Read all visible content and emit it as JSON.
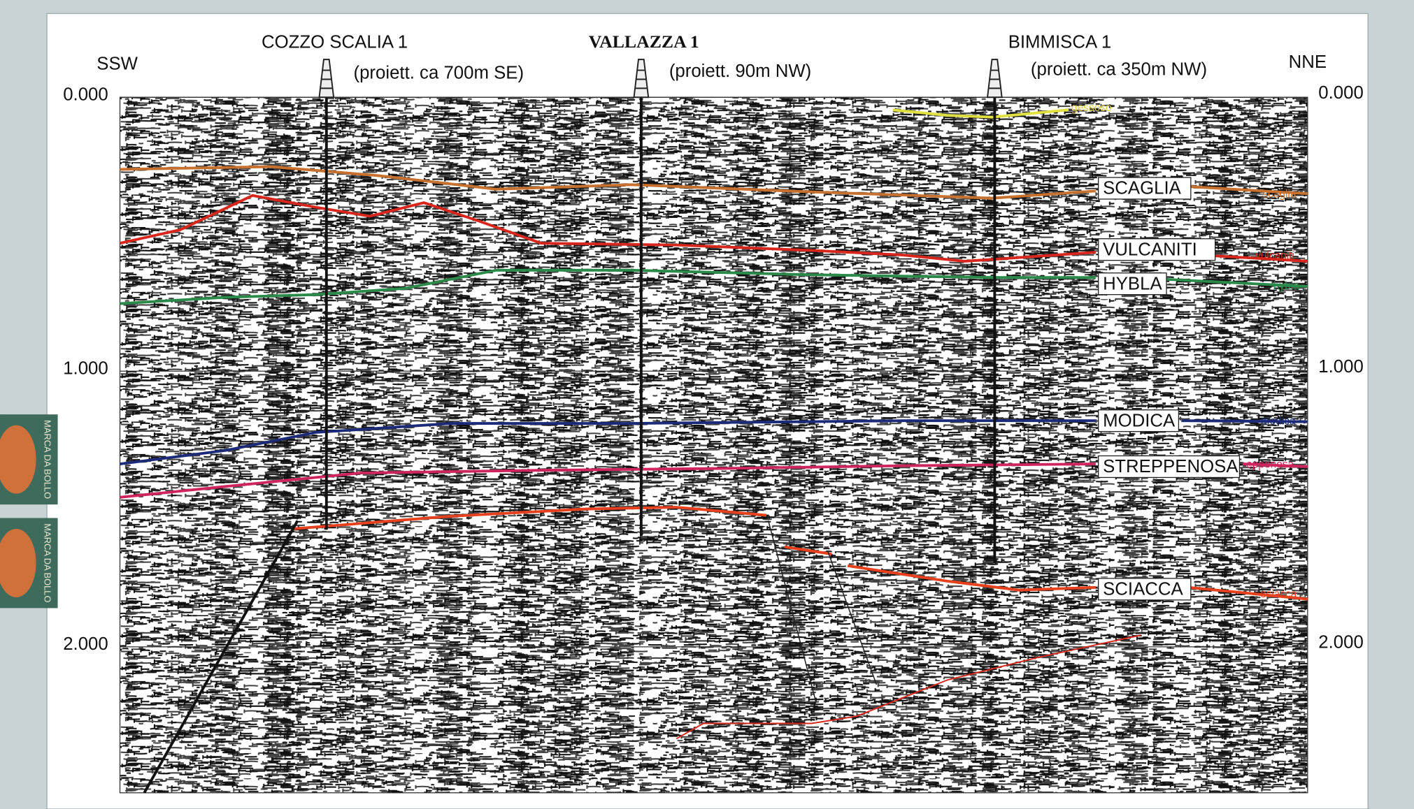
{
  "header": {
    "left_direction": "SSW",
    "right_direction": "NNE"
  },
  "wells": [
    {
      "name": "COZZO SCALIA 1",
      "note": "(proiett. ca 700m SE)"
    },
    {
      "name": "VALLAZZA 1",
      "note": "(proiett.  90m NW)"
    },
    {
      "name": "BIMMISCA 1",
      "note": "(proiett. ca 350m NW)"
    }
  ],
  "time_axis": {
    "left": [
      "0.000",
      "1.000",
      "2.000"
    ],
    "right": [
      "0.000",
      "1.000",
      "2.000"
    ]
  },
  "horizons": [
    {
      "label": "SCAGLIA",
      "tag": "scaglia"
    },
    {
      "label": "VULCANITI",
      "tag": "vulcaniti"
    },
    {
      "label": "HYBLA",
      "tag": "hybla"
    },
    {
      "label": "MODICA",
      "tag": "modica"
    },
    {
      "label": "STREPPENOSA",
      "tag": "eppenosa"
    },
    {
      "label": "SCIACCA",
      "tag": "sciacca"
    }
  ],
  "annotations": {
    "gessoso": "gessoso"
  },
  "stamps": [
    "MARCA DA BOLLO",
    "MARCA DA BOLLO"
  ]
}
